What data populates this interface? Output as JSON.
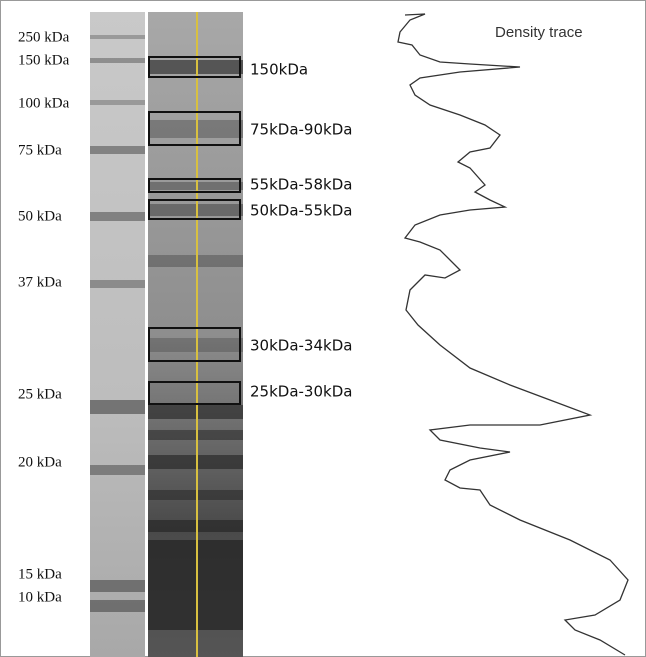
{
  "markers": [
    "250 kDa",
    "150 kDa",
    "100 kDa",
    "75 kDa",
    "50 kDa",
    "37 kDa",
    "25 kDa",
    "20 kDa",
    "15 kDa",
    "10 kDa"
  ],
  "bands": [
    "150kDa",
    "75kDa-90kDa",
    "55kDa-58kDa",
    "50kDa-55kDa",
    "30kDa-34kDa",
    "25kDa-30kDa"
  ],
  "trace_title": "Density trace"
}
